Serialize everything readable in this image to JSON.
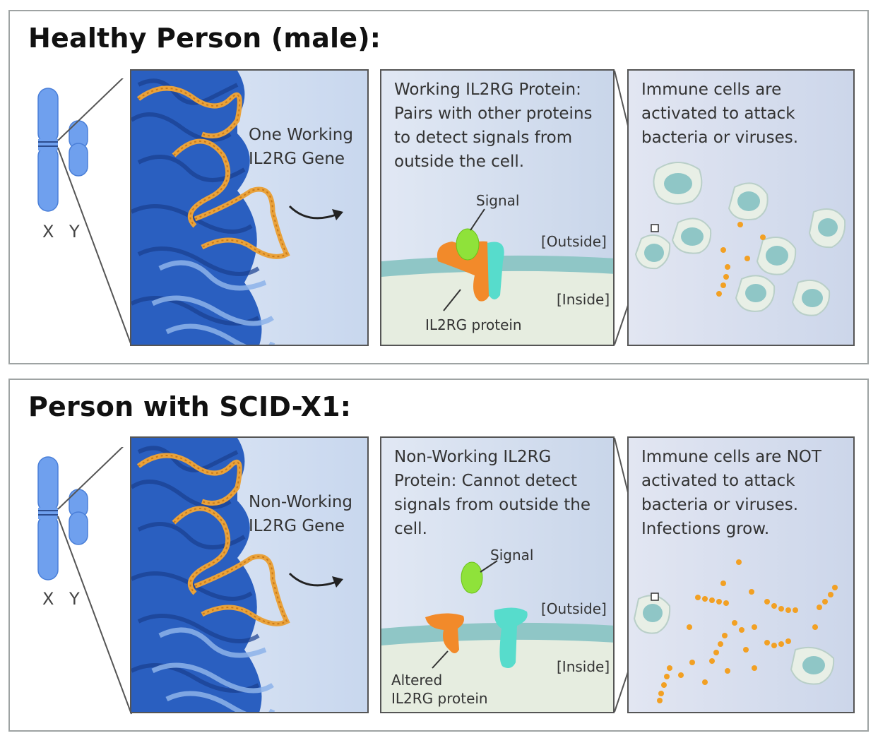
{
  "sections": [
    {
      "title": "Healthy Person (male):",
      "chromosome_labels": {
        "x": "X",
        "y": "Y"
      },
      "gene_text": [
        "One Working",
        "IL2RG Gene"
      ],
      "protein_text": [
        "Working IL2RG Protein:",
        "Pairs with other proteins",
        "to detect signals from",
        "outside the cell."
      ],
      "signal_label": "Signal",
      "outside_label": "[Outside]",
      "inside_label": "[Inside]",
      "protein_label": [
        "IL2RG protein"
      ],
      "immune_text": [
        "Immune cells are",
        "activated to attack",
        "bacteria or viruses."
      ]
    },
    {
      "title": "Person with SCID-X1:",
      "chromosome_labels": {
        "x": "X",
        "y": "Y"
      },
      "gene_text": [
        "Non-Working",
        "IL2RG Gene"
      ],
      "protein_text": [
        "Non-Working  IL2RG",
        "Protein: Cannot detect",
        "signals from outside the",
        "cell."
      ],
      "signal_label": "Signal",
      "outside_label": "[Outside]",
      "inside_label": "[Inside]",
      "protein_label": [
        "Altered",
        "IL2RG protein"
      ],
      "immune_text": [
        "Immune cells are NOT",
        "activated to attack",
        "bacteria or viruses.",
        "Infections grow."
      ]
    }
  ],
  "colors": {
    "chromosome": "#6fa0ee",
    "dna_dark": "#1f4fae",
    "dna_light": "#8db3ea",
    "gene_highlight": "#e9a23b",
    "membrane": "#8fc6c6",
    "signal": "#8fe23a",
    "il2rg": "#f28a2a",
    "partner": "#57dccc",
    "bacteria": "#f2a023",
    "immune_cell": "#cfe3e0"
  },
  "icons": [
    "chromosome-icon",
    "dna-strand-icon",
    "arrow-icon",
    "cell-membrane-icon",
    "immune-cell-icon",
    "bacteria-icon"
  ]
}
